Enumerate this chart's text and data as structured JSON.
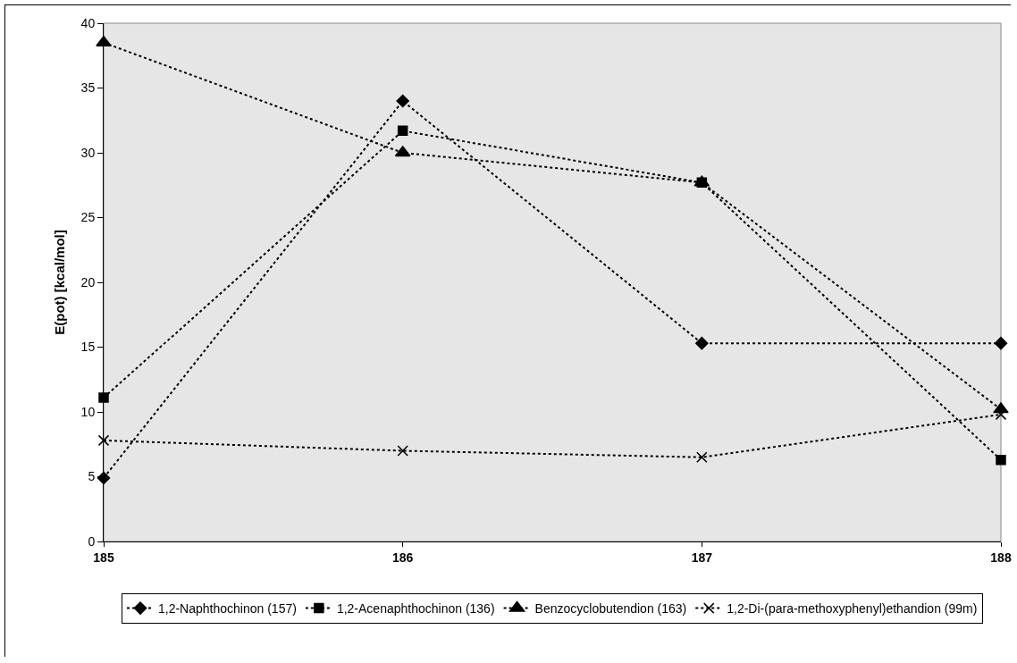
{
  "chart_data": {
    "type": "line",
    "ylabel": "E(pot) [kcal/mol]",
    "categories": [
      "185",
      "186",
      "187",
      "188"
    ],
    "ylim": [
      0,
      40
    ],
    "yticks": [
      0,
      5,
      10,
      15,
      20,
      25,
      30,
      35,
      40
    ],
    "grid": false,
    "legend": "bottom",
    "line_style": "dotted",
    "series": [
      {
        "name": "1,2-Naphthochinon (157)",
        "color": "#000000",
        "marker": "diamond",
        "values": [
          4.9,
          34,
          15.3,
          15.3
        ]
      },
      {
        "name": "1,2-Acenaphthochinon (136)",
        "color": "#000000",
        "marker": "square",
        "values": [
          11.1,
          31.7,
          27.7,
          6.3
        ]
      },
      {
        "name": "Benzocyclobutendion (163)",
        "color": "#000000",
        "marker": "triangle",
        "values": [
          38.5,
          30,
          27.7,
          10.2
        ]
      },
      {
        "name": "1,2-Di-(para-methoxyphenyl)ethandion (99m)",
        "color": "#000000",
        "marker": "cross",
        "values": [
          7.8,
          7,
          6.5,
          9.8
        ]
      }
    ]
  }
}
